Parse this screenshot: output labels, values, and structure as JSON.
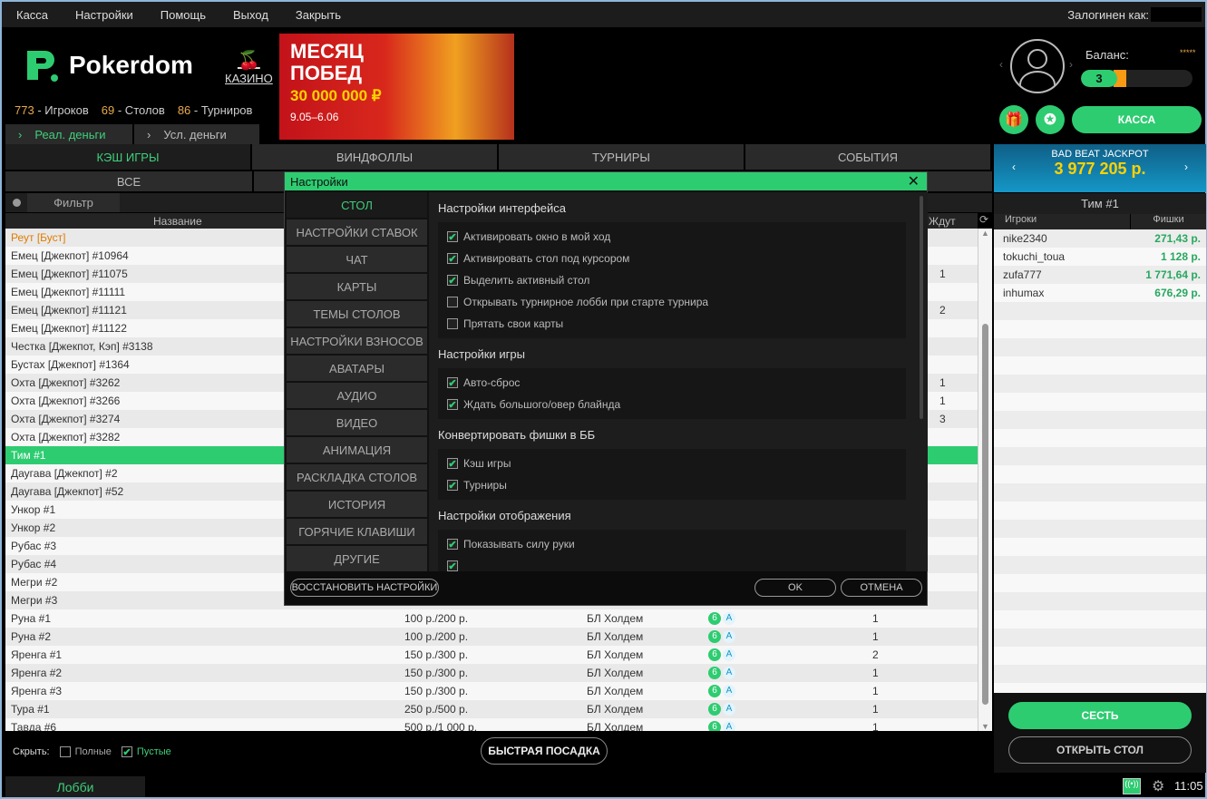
{
  "menu": [
    "Касса",
    "Настройки",
    "Помощь",
    "Выход",
    "Закрыть"
  ],
  "login_label": "Залогинен как:",
  "brand": "Pokerdom",
  "casino": "КАЗИНО",
  "stats": [
    {
      "n": "773",
      "l": " - Игроков"
    },
    {
      "n": "69",
      "l": " - Столов"
    },
    {
      "n": "86",
      "l": " - Турниров"
    }
  ],
  "money": {
    "real": "Реал. деньги",
    "play": "Усл. деньги"
  },
  "banner": {
    "title1": "МЕСЯЦ",
    "title2": "ПОБЕД",
    "prize": "30 000 000 ₽",
    "dates": "9.05–6.06"
  },
  "tabs": [
    "КЭШ ИГРЫ",
    "ВИНДФОЛЛЫ",
    "ТУРНИРЫ",
    "СОБЫТИЯ"
  ],
  "subtab": "ВСЕ",
  "filter": "Фильтр",
  "cols": {
    "name": "Название",
    "waiting": "Ждут"
  },
  "rows": [
    {
      "name": "Реут [Буст]",
      "w": "",
      "orange": true
    },
    {
      "name": "Емец [Джекпот] #10964",
      "w": ""
    },
    {
      "name": "Емец [Джекпот] #11075",
      "w": "1"
    },
    {
      "name": "Емец [Джекпот] #11111",
      "w": ""
    },
    {
      "name": "Емец [Джекпот] #11121",
      "w": "2"
    },
    {
      "name": "Емец [Джекпот] #11122",
      "w": ""
    },
    {
      "name": "Честка [Джекпот, Кэп] #3138",
      "w": ""
    },
    {
      "name": "Бустах [Джекпот] #1364",
      "w": ""
    },
    {
      "name": "Охта [Джекпот] #3262",
      "w": "1"
    },
    {
      "name": "Охта [Джекпот] #3266",
      "w": "1"
    },
    {
      "name": "Охта [Джекпот] #3274",
      "w": "3"
    },
    {
      "name": "Охта [Джекпот] #3282",
      "w": ""
    },
    {
      "name": "Тим #1",
      "w": "",
      "sel": true
    },
    {
      "name": "Даугава [Джекпот] #2",
      "w": ""
    },
    {
      "name": "Даугава [Джекпот] #52",
      "w": ""
    },
    {
      "name": "Ункор #1",
      "w": ""
    },
    {
      "name": "Ункор #2",
      "w": ""
    },
    {
      "name": "Рубас #3",
      "w": ""
    },
    {
      "name": "Рубас #4",
      "w": ""
    },
    {
      "name": "Мегри #2",
      "w": ""
    },
    {
      "name": "Мегри #3",
      "w": ""
    },
    {
      "name": "Руна #1",
      "b": "100 р./200 р.",
      "g": "БЛ Холдем",
      "i6": "6",
      "ia": "A",
      "p": "1",
      "w": ""
    },
    {
      "name": "Руна #2",
      "b": "100 р./200 р.",
      "g": "БЛ Холдем",
      "i6": "6",
      "ia": "A",
      "p": "1",
      "w": ""
    },
    {
      "name": "Яренга #1",
      "b": "150 р./300 р.",
      "g": "БЛ Холдем",
      "i6": "6",
      "ia": "A",
      "p": "2",
      "w": ""
    },
    {
      "name": "Яренга #2",
      "b": "150 р./300 р.",
      "g": "БЛ Холдем",
      "i6": "6",
      "ia": "A",
      "p": "1",
      "w": ""
    },
    {
      "name": "Яренга #3",
      "b": "150 р./300 р.",
      "g": "БЛ Холдем",
      "i6": "6",
      "ia": "A",
      "p": "1",
      "w": ""
    },
    {
      "name": "Тура #1",
      "b": "250 р./500 р.",
      "g": "БЛ Холдем",
      "i6": "6",
      "ia": "A",
      "p": "1",
      "w": ""
    },
    {
      "name": "Тавда #6",
      "b": "500 р./1 000 р.",
      "g": "БЛ Холдем",
      "i6": "6",
      "ia": "A",
      "p": "1",
      "w": ""
    }
  ],
  "hide": {
    "label": "Скрыть:",
    "full": "Полные",
    "empty": "Пустые",
    "full_checked": false,
    "empty_checked": true
  },
  "quick_seat": "БЫСТРАЯ ПОСАДКА",
  "lobby": "Лобби",
  "clock": "11:05",
  "profile": {
    "balance_label": "Баланс:",
    "stars": "*****",
    "level": "3",
    "kassa": "КАССА"
  },
  "jackpot": {
    "title": "BAD BEAT JACKPOT",
    "amount": "3 977 205 р."
  },
  "table_panel": {
    "title": "Тим #1",
    "col_players": "Игроки",
    "col_chips": "Фишки",
    "players": [
      {
        "n": "nike2340",
        "c": "271,43 р."
      },
      {
        "n": "tokuchi_toua",
        "c": "1 128 р."
      },
      {
        "n": "zufa777",
        "c": "1 771,64 р."
      },
      {
        "n": "inhumax",
        "c": "676,29 р."
      }
    ]
  },
  "sit": "СЕСТЬ",
  "open_table": "ОТКРЫТЬ СТОЛ",
  "modal": {
    "title": "Настройки",
    "ok": "OK",
    "cancel": "ОТМЕНА",
    "restore": "ВОССТАНОВИТЬ НАСТРОЙКИ",
    "nav": [
      "СТОЛ",
      "НАСТРОЙКИ СТАВОК",
      "ЧАТ",
      "КАРТЫ",
      "ТЕМЫ СТОЛОВ",
      "НАСТРОЙКИ ВЗНОСОВ",
      "АВАТАРЫ",
      "АУДИО",
      "ВИДЕО",
      "АНИМАЦИЯ",
      "РАСКЛАДКА СТОЛОВ",
      "ИСТОРИЯ",
      "ГОРЯЧИЕ КЛАВИШИ",
      "ДРУГИЕ"
    ],
    "sections": [
      {
        "title": "Настройки интерфейса",
        "items": [
          {
            "l": "Активировать окно в мой ход",
            "c": true
          },
          {
            "l": "Активировать стол под курсором",
            "c": true
          },
          {
            "l": "Выделить активный стол",
            "c": true
          },
          {
            "l": "Открывать турнирное лобби при старте турнира",
            "c": false
          },
          {
            "l": "Прятать свои карты",
            "c": false
          }
        ]
      },
      {
        "title": "Настройки игры",
        "items": [
          {
            "l": "Авто-сброс",
            "c": true
          },
          {
            "l": "Ждать большого/овер блайнда",
            "c": true
          }
        ]
      },
      {
        "title": "Конвертировать фишки в ББ",
        "items": [
          {
            "l": "Кэш игры",
            "c": true
          },
          {
            "l": "Турниры",
            "c": true
          }
        ]
      },
      {
        "title": "Настройки отображения",
        "items": [
          {
            "l": "Показывать силу руки",
            "c": true
          },
          {
            "l": "",
            "c": true
          }
        ]
      }
    ]
  },
  "colors": {
    "accent": "#2ecc71",
    "orange": "#e8a94a",
    "jackpot": "#1597c7"
  }
}
